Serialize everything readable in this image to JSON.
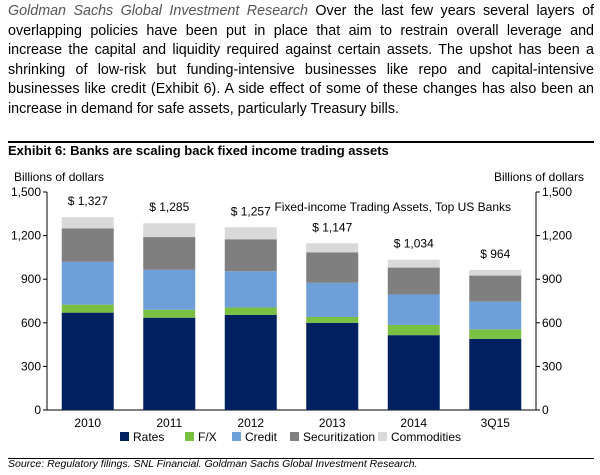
{
  "intro": {
    "source_name": "Goldman Sachs Global Investment Research",
    "text": "Over the last few years several layers of overlapping policies have been put in place that aim to restrain overall leverage and increase the capital and liquidity required against certain assets.  The upshot has been a shrinking of low-risk but funding-intensive businesses like repo and capital-intensive businesses like credit (Exhibit 6).  A side effect of some of these changes has also been an increase in demand for safe assets, particularly Treasury bills."
  },
  "exhibit_title": "Exhibit 6: Banks are scaling back fixed income trading assets",
  "source_note": "Source: Regulatory filings. SNL Financial. Goldman Sachs Global Investment Research.",
  "colors": {
    "Rates": "#002060",
    "F/X": "#7AC143",
    "Credit": "#6F9FD8",
    "Securitization": "#7F7F7F",
    "Commodities": "#D9D9D9"
  },
  "chart_data": {
    "type": "bar",
    "stacked": true,
    "title": "Fixed-income Trading Assets, Top US Banks",
    "ylabel_left": "Billions of dollars",
    "ylabel_right": "Billions of dollars",
    "categories": [
      "2010",
      "2011",
      "2012",
      "2013",
      "2014",
      "3Q15"
    ],
    "ylim": [
      0,
      1500
    ],
    "yticks": [
      "0",
      "300",
      "600",
      "900",
      "1,200",
      "1,500"
    ],
    "ytick_values": [
      0,
      300,
      600,
      900,
      1200,
      1500
    ],
    "grid": false,
    "legend_position": "bottom",
    "series": [
      {
        "name": "Rates",
        "values": [
          670,
          635,
          655,
          600,
          515,
          490
        ]
      },
      {
        "name": "F/X",
        "values": [
          55,
          55,
          50,
          40,
          70,
          65
        ]
      },
      {
        "name": "Credit",
        "values": [
          295,
          275,
          250,
          235,
          210,
          190
        ]
      },
      {
        "name": "Securitization",
        "values": [
          230,
          225,
          220,
          210,
          185,
          180
        ]
      },
      {
        "name": "Commodities",
        "values": [
          77,
          95,
          82,
          62,
          54,
          39
        ]
      }
    ],
    "total_labels": [
      "$ 1,327",
      "$ 1,285",
      "$ 1,257",
      "$ 1,147",
      "$ 1,034",
      "$ 964"
    ],
    "totals": [
      1327,
      1285,
      1257,
      1147,
      1034,
      964
    ]
  }
}
